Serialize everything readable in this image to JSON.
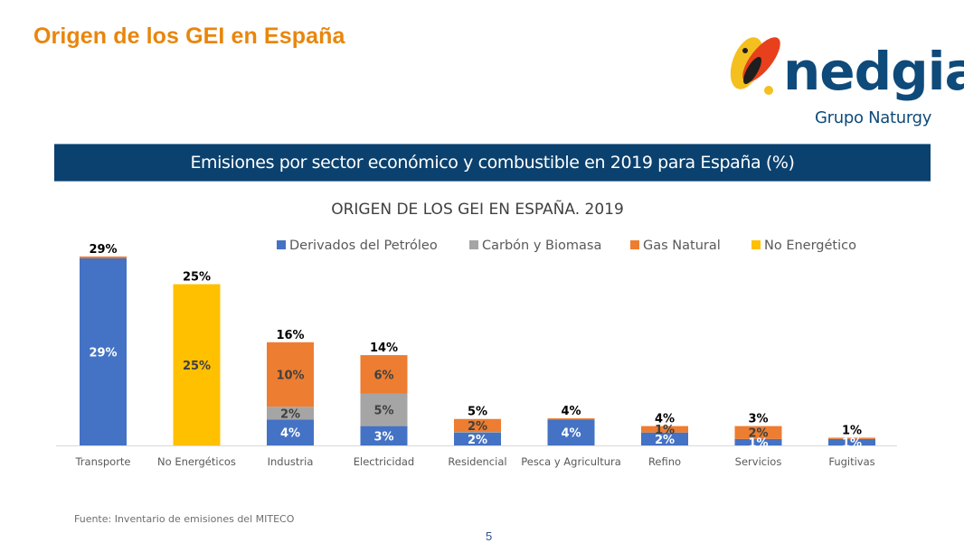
{
  "slide": {
    "title": "Origen de los GEI en España",
    "banner": "Emisiones por sector económico y combustible en 2019 para España (%)",
    "footnote": "Fuente: Inventario de emisiones del MITECO",
    "page_number": "5"
  },
  "logo": {
    "brand": "nedgia",
    "subtitle": "Grupo Naturgy",
    "colors": {
      "text": "#0E4A7A",
      "yellow": "#F4C020",
      "red": "#E8401C",
      "dark": "#1E1E1E"
    }
  },
  "chart_data": {
    "type": "bar",
    "stacked": true,
    "title": "ORIGEN DE LOS GEI EN ESPAÑA. 2019",
    "xlabel": "",
    "ylabel": "",
    "ylim": [
      0,
      30
    ],
    "grid": false,
    "legend_position": "top",
    "categories": [
      "Transporte",
      "No Energéticos",
      "Industria",
      "Electricidad",
      "Residencial",
      "Pesca y Agricultura",
      "Refino",
      "Servicios",
      "Fugitivas"
    ],
    "series": [
      {
        "name": "Derivados del Petróleo",
        "color": "#4472C4",
        "label_color": "#FFFFFF",
        "values": [
          29,
          0,
          4,
          3,
          2,
          4,
          2,
          1,
          1
        ],
        "labels": [
          "29%",
          "",
          "4%",
          "3%",
          "2%",
          "4%",
          "2%",
          "1%",
          "1%"
        ]
      },
      {
        "name": "Carbón y Biomasa",
        "color": "#A5A5A5",
        "label_color": "#404040",
        "values": [
          0,
          0,
          2,
          5,
          0.1,
          0,
          0,
          0,
          0
        ],
        "labels": [
          "",
          "",
          "2%",
          "5%",
          "",
          "",
          "",
          "",
          ""
        ]
      },
      {
        "name": "Gas Natural",
        "color": "#ED7D31",
        "label_color": "#404040",
        "values": [
          0.3,
          0,
          10,
          6,
          2,
          0.2,
          1,
          2,
          0.2
        ],
        "labels": [
          "",
          "",
          "10%",
          "6%",
          "2%",
          "",
          "1%",
          "2%",
          ""
        ]
      },
      {
        "name": "No Energético",
        "color": "#FFC000",
        "label_color": "#404040",
        "values": [
          0,
          25,
          0,
          0,
          0,
          0,
          0,
          0,
          0
        ],
        "labels": [
          "",
          "25%",
          "",
          "",
          "",
          "",
          "",
          "",
          ""
        ]
      }
    ],
    "totals": [
      "29%",
      "25%",
      "16%",
      "14%",
      "5%",
      "4%",
      "4%",
      "3%",
      "1%"
    ],
    "total_values": [
      29,
      25,
      16,
      14,
      5,
      4,
      4,
      3,
      1
    ]
  }
}
